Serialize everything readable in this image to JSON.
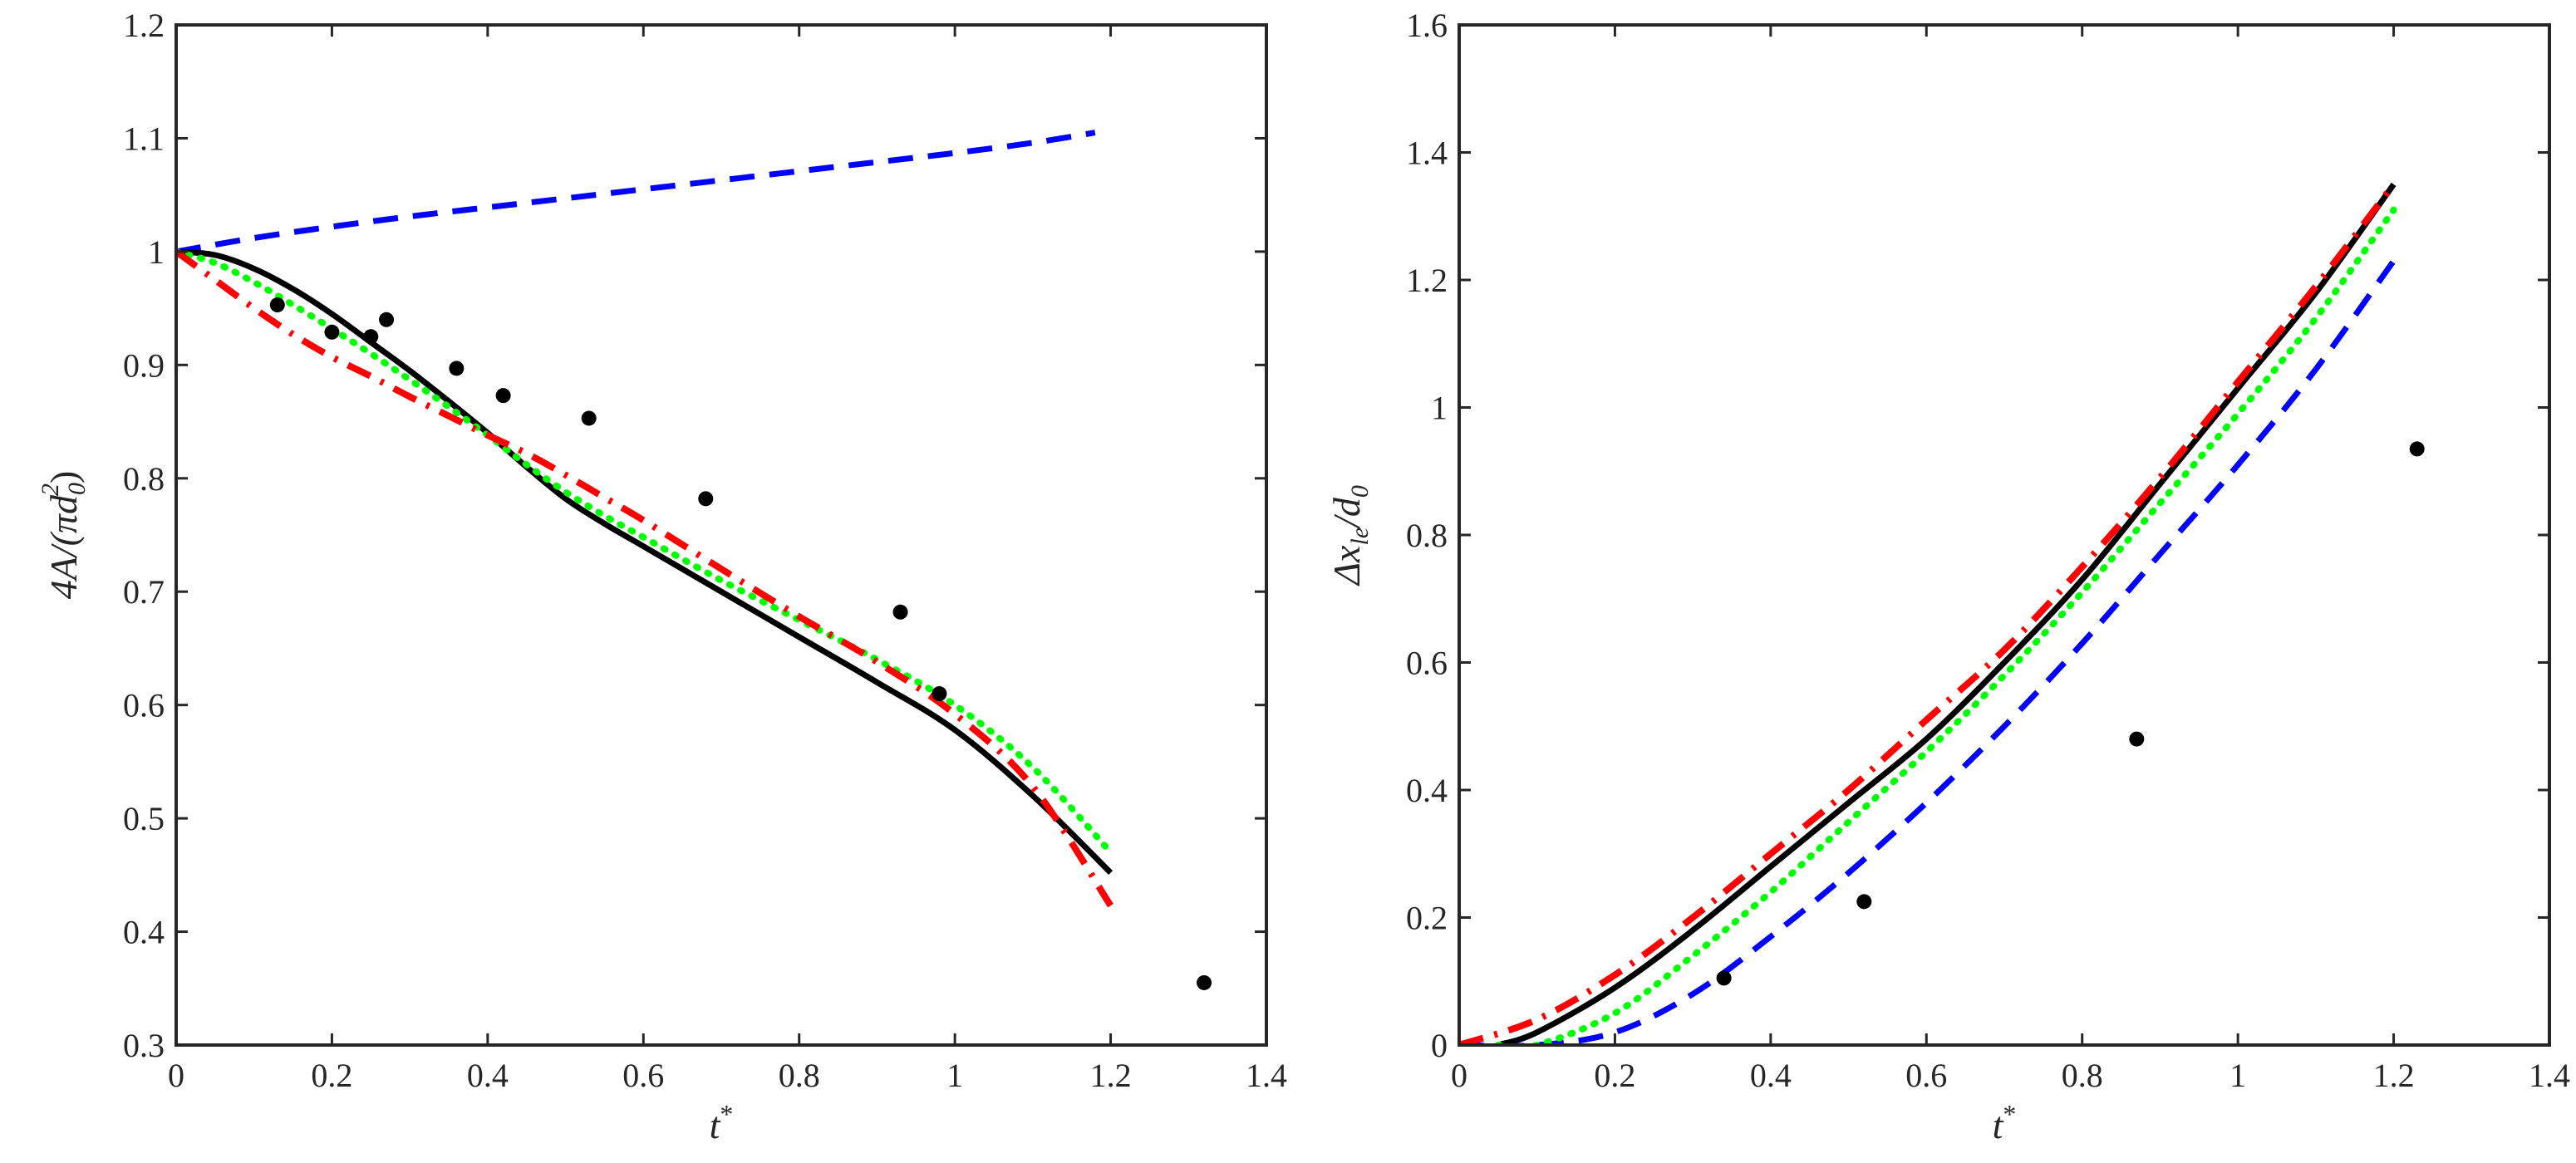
{
  "chart_data": [
    {
      "type": "line",
      "title": "",
      "xlabel": "t*",
      "ylabel": "4A/(πd0²)",
      "ylabel_parts": {
        "main": "4A/(πd",
        "sub": "0",
        "sup": "2",
        "close": ")"
      },
      "xlim": [
        0,
        1.4
      ],
      "ylim": [
        0.3,
        1.2
      ],
      "xticks": [
        0,
        0.2,
        0.4,
        0.6,
        0.8,
        1,
        1.2,
        1.4
      ],
      "xtick_labels": [
        "0",
        "0.2",
        "0.4",
        "0.6",
        "0.8",
        "1",
        "1.2",
        "1.4"
      ],
      "yticks": [
        0.3,
        0.4,
        0.5,
        0.6,
        0.7,
        0.8,
        0.9,
        1,
        1.1,
        1.2
      ],
      "ytick_labels": [
        "0.3",
        "0.4",
        "0.5",
        "0.6",
        "0.7",
        "0.8",
        "0.9",
        "1",
        "1.1",
        "1.2"
      ],
      "series": [
        {
          "name": "blue-dashed",
          "style": "dashed",
          "color": "#0000ff",
          "x": [
            0,
            0.1,
            0.2,
            0.3,
            0.4,
            0.5,
            0.6,
            0.7,
            0.8,
            0.9,
            1.0,
            1.1,
            1.18
          ],
          "y": [
            1.0,
            1.012,
            1.022,
            1.031,
            1.039,
            1.047,
            1.055,
            1.063,
            1.071,
            1.079,
            1.087,
            1.096,
            1.105
          ]
        },
        {
          "name": "black-solid",
          "style": "solid",
          "color": "#000000",
          "x": [
            0,
            0.05,
            0.1,
            0.15,
            0.2,
            0.25,
            0.3,
            0.35,
            0.4,
            0.45,
            0.5,
            0.55,
            0.6,
            0.7,
            0.8,
            0.9,
            1.0,
            1.1,
            1.2
          ],
          "y": [
            1.0,
            0.997,
            0.985,
            0.967,
            0.945,
            0.92,
            0.895,
            0.868,
            0.84,
            0.81,
            0.782,
            0.76,
            0.74,
            0.7,
            0.66,
            0.62,
            0.578,
            0.52,
            0.452
          ]
        },
        {
          "name": "green-dotted",
          "style": "dotted",
          "color": "#00ff00",
          "x": [
            0,
            0.05,
            0.1,
            0.15,
            0.2,
            0.25,
            0.3,
            0.35,
            0.4,
            0.45,
            0.5,
            0.55,
            0.6,
            0.7,
            0.8,
            0.9,
            1.0,
            1.1,
            1.2
          ],
          "y": [
            1.0,
            0.99,
            0.973,
            0.953,
            0.932,
            0.91,
            0.887,
            0.863,
            0.838,
            0.812,
            0.788,
            0.767,
            0.748,
            0.71,
            0.675,
            0.64,
            0.6,
            0.545,
            0.47
          ]
        },
        {
          "name": "red-dashdot",
          "style": "dashdot",
          "color": "#ff0000",
          "x": [
            0,
            0.05,
            0.1,
            0.15,
            0.2,
            0.25,
            0.3,
            0.35,
            0.4,
            0.45,
            0.5,
            0.55,
            0.6,
            0.7,
            0.8,
            0.9,
            1.0,
            1.1,
            1.2
          ],
          "y": [
            1.0,
            0.975,
            0.95,
            0.927,
            0.907,
            0.89,
            0.872,
            0.855,
            0.838,
            0.822,
            0.803,
            0.783,
            0.763,
            0.72,
            0.678,
            0.638,
            0.592,
            0.528,
            0.423
          ]
        },
        {
          "name": "experiment",
          "style": "markers",
          "color": "#000000",
          "x": [
            0.13,
            0.2,
            0.25,
            0.27,
            0.36,
            0.42,
            0.53,
            0.68,
            0.93,
            0.98,
            1.32
          ],
          "y": [
            0.953,
            0.929,
            0.925,
            0.94,
            0.897,
            0.873,
            0.853,
            0.782,
            0.682,
            0.61,
            0.355
          ]
        }
      ]
    },
    {
      "type": "line",
      "title": "",
      "xlabel": "t*",
      "ylabel": "Δx_le/d0",
      "ylabel_parts": {
        "main": "Δx",
        "sub": "le",
        "slash": "/d",
        "sub2": "0"
      },
      "xlim": [
        0,
        1.4
      ],
      "ylim": [
        0,
        1.6
      ],
      "xticks": [
        0,
        0.2,
        0.4,
        0.6,
        0.8,
        1,
        1.2,
        1.4
      ],
      "xtick_labels": [
        "0",
        "0.2",
        "0.4",
        "0.6",
        "0.8",
        "1",
        "1.2",
        "1.4"
      ],
      "yticks": [
        0,
        0.2,
        0.4,
        0.6,
        0.8,
        1,
        1.2,
        1.4,
        1.6
      ],
      "ytick_labels": [
        "0",
        "0.2",
        "0.4",
        "0.6",
        "0.8",
        "1",
        "1.2",
        "1.4",
        "1.6"
      ],
      "series": [
        {
          "name": "blue-dashed",
          "style": "dashed",
          "color": "#0000ff",
          "x": [
            0,
            0.1,
            0.2,
            0.3,
            0.4,
            0.5,
            0.6,
            0.7,
            0.8,
            0.9,
            1.0,
            1.1,
            1.2
          ],
          "y": [
            0,
            0.0,
            0.02,
            0.08,
            0.17,
            0.27,
            0.38,
            0.5,
            0.63,
            0.77,
            0.91,
            1.06,
            1.23
          ]
        },
        {
          "name": "black-solid",
          "style": "solid",
          "color": "#000000",
          "x": [
            0.05,
            0.1,
            0.2,
            0.3,
            0.4,
            0.5,
            0.6,
            0.7,
            0.8,
            0.9,
            1.0,
            1.1,
            1.2
          ],
          "y": [
            0,
            0.02,
            0.09,
            0.18,
            0.28,
            0.38,
            0.48,
            0.6,
            0.73,
            0.88,
            1.03,
            1.18,
            1.35
          ]
        },
        {
          "name": "green-dotted",
          "style": "dotted",
          "color": "#00ff00",
          "x": [
            0.05,
            0.1,
            0.2,
            0.3,
            0.4,
            0.5,
            0.6,
            0.7,
            0.8,
            0.9,
            1.0,
            1.1,
            1.2
          ],
          "y": [
            0,
            0.0,
            0.05,
            0.14,
            0.24,
            0.35,
            0.46,
            0.58,
            0.71,
            0.85,
            0.99,
            1.14,
            1.31
          ]
        },
        {
          "name": "red-dashdot",
          "style": "dashdot",
          "color": "#ff0000",
          "x": [
            0,
            0.1,
            0.2,
            0.3,
            0.4,
            0.5,
            0.6,
            0.7,
            0.8,
            0.9,
            1.0,
            1.1,
            1.2
          ],
          "y": [
            0,
            0.04,
            0.11,
            0.2,
            0.3,
            0.4,
            0.51,
            0.62,
            0.75,
            0.89,
            1.04,
            1.19,
            1.35
          ]
        },
        {
          "name": "experiment",
          "style": "markers",
          "color": "#000000",
          "x": [
            0.34,
            0.52,
            0.87,
            1.23
          ],
          "y": [
            0.105,
            0.225,
            0.48,
            0.935
          ]
        }
      ]
    }
  ]
}
